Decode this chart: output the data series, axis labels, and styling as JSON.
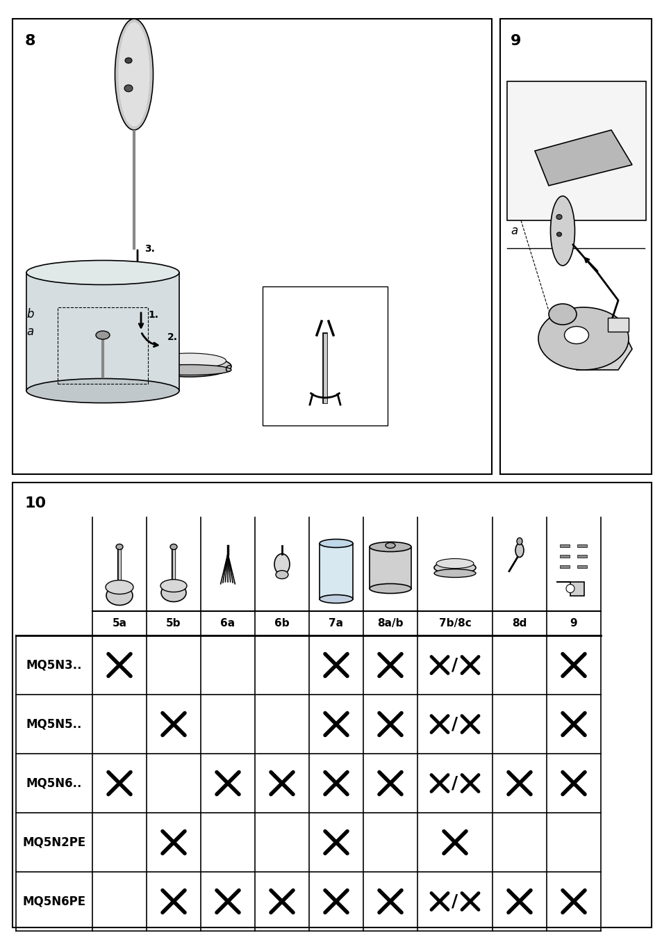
{
  "page_bg": "#ffffff",
  "border_color": "#000000",
  "section8_label": "8",
  "section9_label": "9",
  "section10_label": "10",
  "table_col_headers": [
    "5a",
    "5b",
    "6a",
    "6b",
    "7a",
    "8a/b",
    "7b/8c",
    "8d",
    "9"
  ],
  "table_row_labels": [
    "MQ5N3..",
    "MQ5N5..",
    "MQ5N6..",
    "MQ5N2PE",
    "MQ5N6PE"
  ],
  "table_data": [
    [
      "X",
      "",
      "",
      "",
      "X",
      "X",
      "X/X",
      "",
      "X"
    ],
    [
      "",
      "X",
      "",
      "",
      "X",
      "X",
      "X/X",
      "",
      "X"
    ],
    [
      "X",
      "",
      "X",
      "X",
      "X",
      "X",
      "X/X",
      "X",
      "X"
    ],
    [
      "",
      "X",
      "",
      "",
      "X",
      "",
      "X",
      "",
      ""
    ],
    [
      "",
      "X",
      "X",
      "X",
      "X",
      "X",
      "X/X",
      "X",
      "X"
    ]
  ],
  "title_fontsize": 16,
  "header_fontsize": 11,
  "row_label_fontsize": 12
}
